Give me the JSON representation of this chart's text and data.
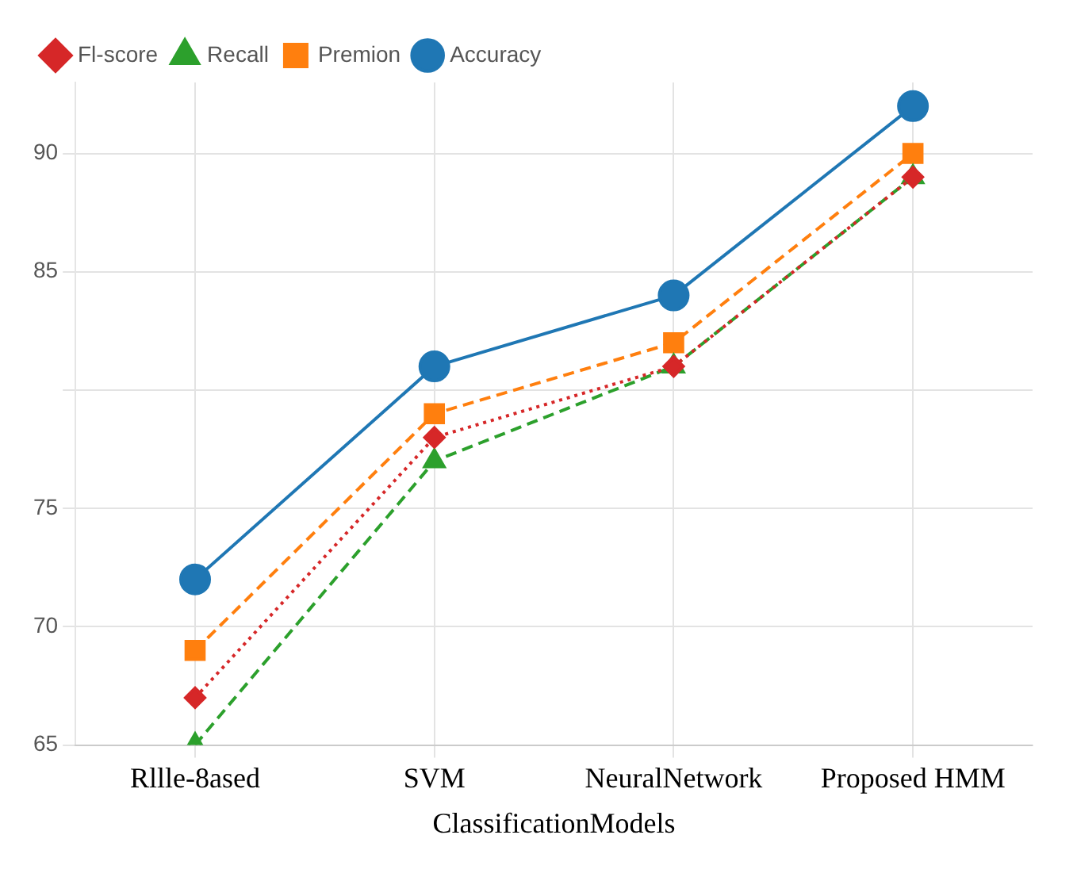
{
  "chart_data": {
    "type": "line",
    "xlabel": "ClassificationModels",
    "categories": [
      "Rllle-8ased",
      "SVM",
      "NeuralNetwork",
      "Proposed HMM"
    ],
    "series": [
      {
        "name": "Accuracy",
        "color": "#1f77b4",
        "values": [
          72,
          81,
          84,
          92
        ],
        "marker": "circle",
        "line_style": "solid"
      },
      {
        "name": "Premion",
        "color": "#ff7f0e",
        "values": [
          69,
          79,
          82,
          90
        ],
        "marker": "square",
        "line_style": "dashed"
      },
      {
        "name": "Recall",
        "color": "#2ca02c",
        "values": [
          65,
          77,
          81,
          89
        ],
        "marker": "triangle",
        "line_style": "dashed"
      },
      {
        "name": "Fl-score",
        "color": "#d62728",
        "values": [
          67,
          78,
          81,
          89
        ],
        "marker": "diamond",
        "line_style": "dotted"
      }
    ],
    "ylim": [
      65,
      93
    ],
    "yticks": [
      65,
      70,
      75,
      {
        "value": 80,
        "label": null
      },
      85,
      90
    ],
    "grid": true,
    "legend": "top left"
  }
}
